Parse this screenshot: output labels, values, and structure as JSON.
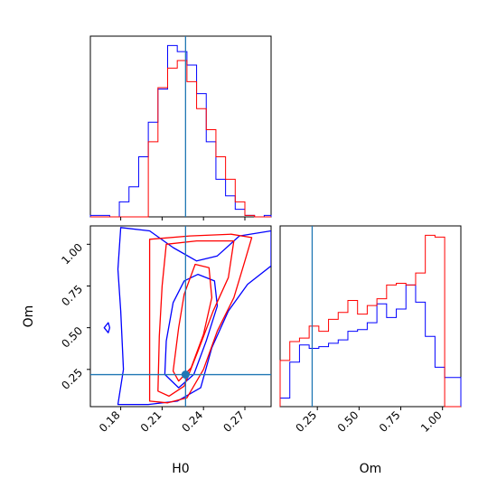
{
  "chart_data": {
    "type": "corner",
    "colors": {
      "series_a": "#0000ff",
      "series_b": "#ff0000",
      "truth": "#1f77b4"
    },
    "truth": {
      "H0": 0.227,
      "Om": 0.219
    },
    "axes": {
      "H0": {
        "label": "H0",
        "range": [
          0.158,
          0.289
        ],
        "ticks": [
          "0.18",
          "0.21",
          "0.24",
          "0.27"
        ],
        "tick_values": [
          0.18,
          0.21,
          0.24,
          0.27
        ]
      },
      "Om": {
        "label": "Om",
        "range": [
          0.027,
          1.11
        ],
        "ticks": [
          "0.25",
          "0.50",
          "0.75",
          "1.00"
        ],
        "tick_values": [
          0.25,
          0.5,
          0.75,
          1.0
        ]
      }
    },
    "hist_H0": {
      "bin_edges": [
        0.158,
        0.165,
        0.172,
        0.179,
        0.186,
        0.193,
        0.2,
        0.207,
        0.214,
        0.221,
        0.228,
        0.235,
        0.242,
        0.249,
        0.256,
        0.263,
        0.27,
        0.277,
        0.284,
        0.289
      ],
      "series": [
        {
          "color": "blue",
          "counts": [
            1,
            1,
            0,
            10,
            20,
            40,
            63,
            85,
            114,
            110,
            101,
            82,
            50,
            25,
            14,
            5,
            1,
            0,
            1
          ]
        },
        {
          "color": "red",
          "counts": [
            0,
            0,
            0,
            0,
            0,
            0,
            50,
            86,
            99,
            104,
            90,
            72,
            58,
            40,
            25,
            10,
            1,
            0,
            0
          ]
        }
      ]
    },
    "hist_Om": {
      "bin_edges": [
        0.027,
        0.085,
        0.143,
        0.201,
        0.259,
        0.317,
        0.375,
        0.433,
        0.491,
        0.549,
        0.607,
        0.665,
        0.723,
        0.781,
        0.839,
        0.897,
        0.955,
        1.013,
        1.071,
        1.11
      ],
      "series": [
        {
          "color": "blue",
          "counts": [
            5,
            26,
            36,
            34,
            35,
            37,
            39,
            44,
            45,
            49,
            60,
            52,
            57,
            71,
            61,
            41,
            23,
            17,
            17
          ]
        },
        {
          "color": "red",
          "counts": [
            27,
            38,
            40,
            47,
            44,
            51,
            55,
            62,
            54,
            59,
            63,
            71,
            72,
            71,
            78,
            100,
            99,
            0,
            0
          ]
        }
      ]
    },
    "contours": [
      {
        "series": "blue",
        "level": "outer",
        "points": [
          [
            0.178,
            0.04
          ],
          [
            0.182,
            0.25
          ],
          [
            0.18,
            0.6
          ],
          [
            0.178,
            0.85
          ],
          [
            0.18,
            1.1
          ],
          [
            0.201,
            1.08
          ],
          [
            0.218,
            0.98
          ],
          [
            0.235,
            0.9
          ],
          [
            0.25,
            0.93
          ],
          [
            0.266,
            1.05
          ],
          [
            0.289,
            1.08
          ],
          [
            0.289,
            0.87
          ],
          [
            0.272,
            0.76
          ],
          [
            0.258,
            0.6
          ],
          [
            0.246,
            0.38
          ],
          [
            0.238,
            0.14
          ],
          [
            0.221,
            0.06
          ],
          [
            0.2,
            0.04
          ],
          [
            0.178,
            0.04
          ]
        ]
      },
      {
        "series": "blue",
        "level": "inner",
        "points": [
          [
            0.212,
            0.22
          ],
          [
            0.213,
            0.42
          ],
          [
            0.218,
            0.65
          ],
          [
            0.226,
            0.78
          ],
          [
            0.236,
            0.82
          ],
          [
            0.248,
            0.78
          ],
          [
            0.25,
            0.63
          ],
          [
            0.242,
            0.42
          ],
          [
            0.233,
            0.22
          ],
          [
            0.222,
            0.14
          ],
          [
            0.212,
            0.22
          ]
        ]
      },
      {
        "series": "blue",
        "level": "marker",
        "points": [
          [
            0.168,
            0.5
          ],
          [
            0.171,
            0.53
          ],
          [
            0.172,
            0.5
          ],
          [
            0.171,
            0.47
          ],
          [
            0.168,
            0.5
          ]
        ]
      },
      {
        "series": "red",
        "level": "outer",
        "points": [
          [
            0.201,
            0.06
          ],
          [
            0.201,
            0.5
          ],
          [
            0.201,
            1.03
          ],
          [
            0.23,
            1.05
          ],
          [
            0.26,
            1.06
          ],
          [
            0.275,
            1.04
          ],
          [
            0.27,
            0.9
          ],
          [
            0.262,
            0.68
          ],
          [
            0.25,
            0.48
          ],
          [
            0.24,
            0.25
          ],
          [
            0.228,
            0.08
          ],
          [
            0.214,
            0.05
          ],
          [
            0.201,
            0.06
          ]
        ]
      },
      {
        "series": "red",
        "level": "inner",
        "points": [
          [
            0.207,
            0.12
          ],
          [
            0.208,
            0.45
          ],
          [
            0.21,
            0.75
          ],
          [
            0.213,
            1.0
          ],
          [
            0.235,
            1.02
          ],
          [
            0.262,
            1.02
          ],
          [
            0.258,
            0.8
          ],
          [
            0.247,
            0.6
          ],
          [
            0.236,
            0.36
          ],
          [
            0.226,
            0.15
          ],
          [
            0.215,
            0.09
          ],
          [
            0.207,
            0.12
          ]
        ]
      },
      {
        "series": "red",
        "level": "core",
        "points": [
          [
            0.218,
            0.24
          ],
          [
            0.222,
            0.5
          ],
          [
            0.226,
            0.7
          ],
          [
            0.234,
            0.88
          ],
          [
            0.244,
            0.86
          ],
          [
            0.246,
            0.68
          ],
          [
            0.24,
            0.46
          ],
          [
            0.231,
            0.26
          ],
          [
            0.222,
            0.18
          ],
          [
            0.218,
            0.24
          ]
        ]
      }
    ]
  }
}
